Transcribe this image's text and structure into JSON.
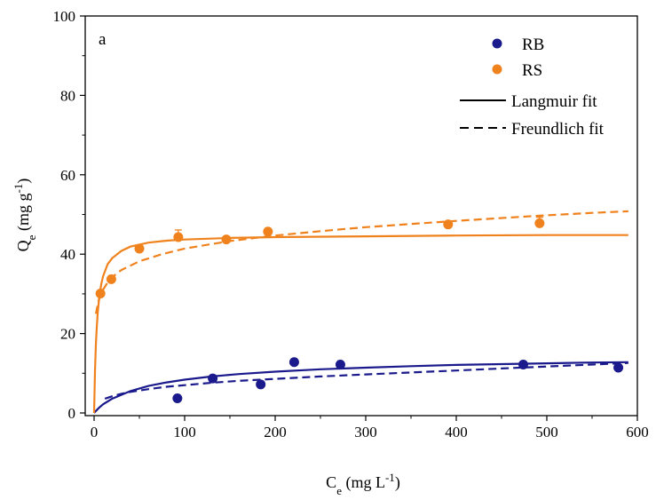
{
  "chart_data": {
    "type": "scatter",
    "panel_label": "a",
    "xlabel": {
      "main": "C",
      "sub": "e",
      "unit_pre": " (mg L",
      "unit_sup": "-1",
      "unit_post": ")"
    },
    "ylabel": {
      "main": "Q",
      "sub": "e",
      "unit_pre": " (mg g",
      "unit_sup": "-1",
      "unit_post": ")"
    },
    "xlim": [
      0,
      600
    ],
    "ylim": [
      0,
      100
    ],
    "x_ticks": [
      "0",
      "100",
      "200",
      "300",
      "400",
      "500",
      "600"
    ],
    "y_ticks": [
      "0",
      "20",
      "40",
      "60",
      "80",
      "100"
    ],
    "grid": false,
    "legend_position": "top-right",
    "legend": [
      "RB",
      "RS",
      "Langmuir fit",
      "Freundlich fit"
    ],
    "series": [
      {
        "name": "RB",
        "color": "#1a1a8c",
        "points": [
          {
            "x": 92,
            "y": 3.7
          },
          {
            "x": 131,
            "y": 8.7
          },
          {
            "x": 184,
            "y": 7.2
          },
          {
            "x": 221,
            "y": 12.8
          },
          {
            "x": 272,
            "y": 12.2
          },
          {
            "x": 474,
            "y": 12.2
          },
          {
            "x": 579,
            "y": 11.4
          }
        ],
        "errors": [
          0,
          0,
          0,
          0,
          0,
          0,
          0
        ],
        "langmuir": [
          [
            0,
            0
          ],
          [
            2,
            0.5
          ],
          [
            5,
            1.2
          ],
          [
            10,
            2.2
          ],
          [
            20,
            3.6
          ],
          [
            40,
            5.5
          ],
          [
            60,
            6.8
          ],
          [
            80,
            7.7
          ],
          [
            100,
            8.4
          ],
          [
            130,
            9.2
          ],
          [
            160,
            9.8
          ],
          [
            200,
            10.4
          ],
          [
            250,
            11.0
          ],
          [
            300,
            11.4
          ],
          [
            350,
            11.8
          ],
          [
            400,
            12.1
          ],
          [
            450,
            12.3
          ],
          [
            500,
            12.5
          ],
          [
            550,
            12.7
          ],
          [
            590,
            12.8
          ]
        ],
        "freundlich": [
          [
            12,
            3.6
          ],
          [
            20,
            4.2
          ],
          [
            30,
            4.8
          ],
          [
            40,
            5.3
          ],
          [
            60,
            6.0
          ],
          [
            80,
            6.6
          ],
          [
            100,
            7.0
          ],
          [
            130,
            7.6
          ],
          [
            160,
            8.1
          ],
          [
            200,
            8.6
          ],
          [
            250,
            9.2
          ],
          [
            300,
            9.7
          ],
          [
            350,
            10.2
          ],
          [
            400,
            10.7
          ],
          [
            450,
            11.2
          ],
          [
            500,
            11.7
          ],
          [
            550,
            12.2
          ],
          [
            590,
            12.6
          ]
        ]
      },
      {
        "name": "RS",
        "color": "#f0821e",
        "points": [
          {
            "x": 7,
            "y": 30.1
          },
          {
            "x": 19,
            "y": 33.7
          },
          {
            "x": 50,
            "y": 41.4
          },
          {
            "x": 93,
            "y": 44.3
          },
          {
            "x": 146,
            "y": 43.7
          },
          {
            "x": 192,
            "y": 45.7
          },
          {
            "x": 391,
            "y": 47.5
          },
          {
            "x": 492,
            "y": 47.8
          }
        ],
        "errors": [
          0,
          0,
          0,
          1.8,
          0,
          0,
          0,
          1.5
        ],
        "langmuir": [
          [
            0,
            0
          ],
          [
            1,
            10.5
          ],
          [
            2,
            17.2
          ],
          [
            3,
            21.9
          ],
          [
            4,
            25.3
          ],
          [
            6,
            29.8
          ],
          [
            8,
            32.6
          ],
          [
            10,
            34.5
          ],
          [
            15,
            37.5
          ],
          [
            20,
            39.0
          ],
          [
            30,
            40.8
          ],
          [
            40,
            41.9
          ],
          [
            60,
            42.9
          ],
          [
            80,
            43.4
          ],
          [
            100,
            43.7
          ],
          [
            150,
            44.1
          ],
          [
            200,
            44.3
          ],
          [
            300,
            44.5
          ],
          [
            400,
            44.7
          ],
          [
            500,
            44.8
          ],
          [
            590,
            44.8
          ]
        ],
        "freundlich": [
          [
            2,
            25.0
          ],
          [
            5,
            28.3
          ],
          [
            10,
            31.1
          ],
          [
            15,
            32.9
          ],
          [
            20,
            34.2
          ],
          [
            30,
            36.0
          ],
          [
            50,
            38.2
          ],
          [
            75,
            40.0
          ],
          [
            100,
            41.4
          ],
          [
            150,
            43.3
          ],
          [
            200,
            44.7
          ],
          [
            250,
            45.8
          ],
          [
            300,
            46.8
          ],
          [
            350,
            47.6
          ],
          [
            400,
            48.4
          ],
          [
            450,
            49.1
          ],
          [
            500,
            49.8
          ],
          [
            550,
            50.4
          ],
          [
            590,
            50.8
          ]
        ]
      }
    ]
  }
}
